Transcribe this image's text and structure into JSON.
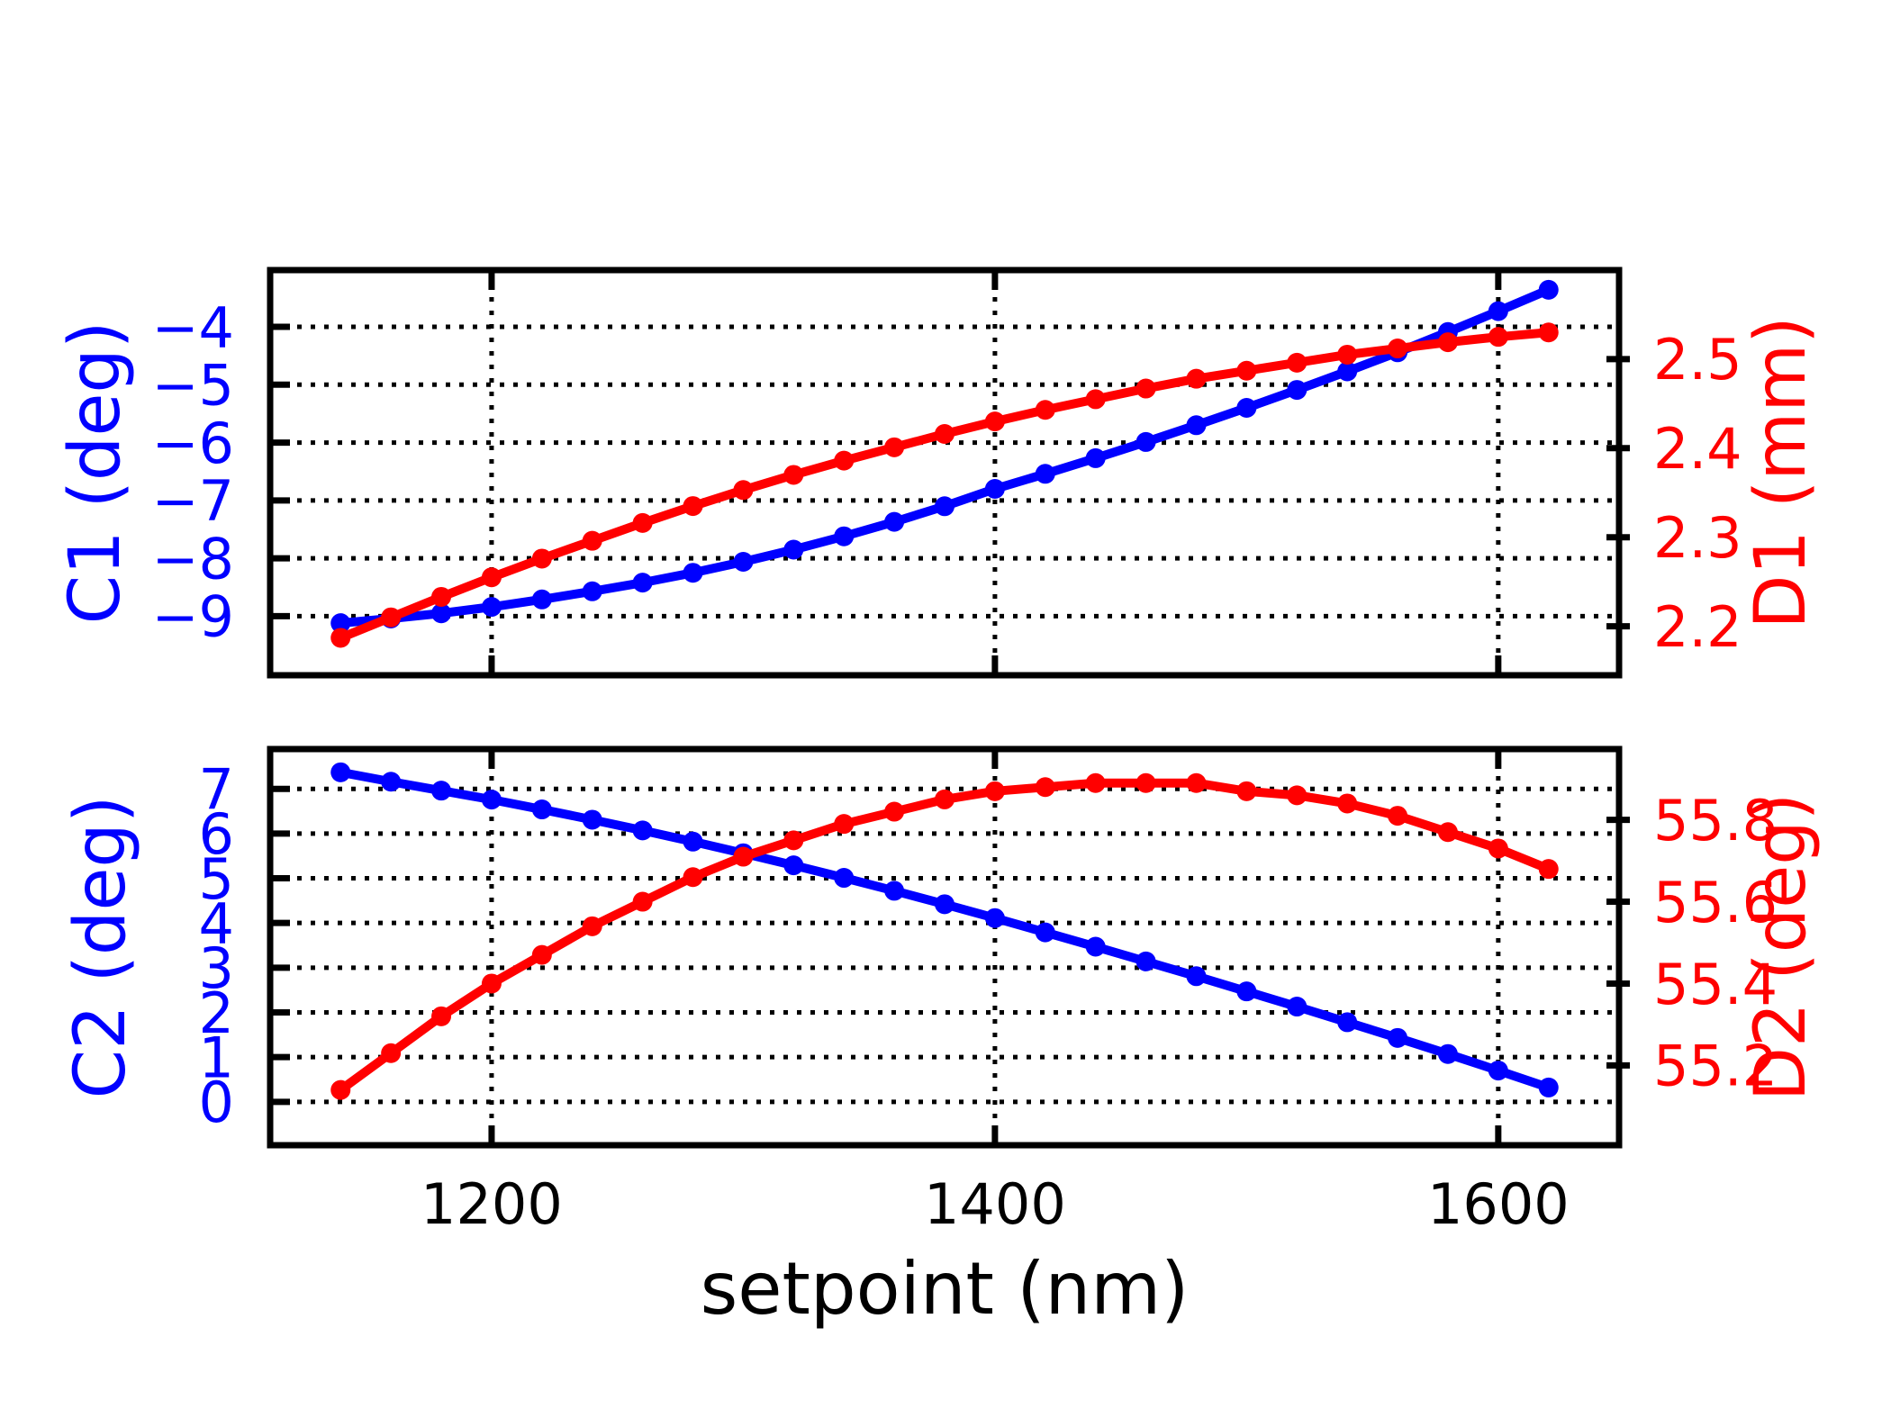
{
  "figure": {
    "xlabel": "setpoint (nm)",
    "background": "#ffffff",
    "grid_color": "#000000",
    "left_series_color": "#0000ff",
    "right_series_color": "#ff0000"
  },
  "chart_data": [
    {
      "type": "line",
      "title": "",
      "panel": "top",
      "x": [
        1140,
        1160,
        1180,
        1200,
        1220,
        1240,
        1260,
        1280,
        1300,
        1320,
        1340,
        1360,
        1380,
        1400,
        1420,
        1440,
        1460,
        1480,
        1500,
        1520,
        1540,
        1560,
        1580,
        1600,
        1620
      ],
      "xlim": [
        1112,
        1648
      ],
      "x_ticks": [
        1200,
        1400,
        1600
      ],
      "x_tick_labels": [
        "1200",
        "1400",
        "1600"
      ],
      "show_x_tick_labels": false,
      "grid": true,
      "series": [
        {
          "name": "C1",
          "axis": "left",
          "color": "#0000ff",
          "values": [
            -9.12,
            -9.04,
            -8.95,
            -8.84,
            -8.71,
            -8.57,
            -8.42,
            -8.25,
            -8.06,
            -7.85,
            -7.62,
            -7.37,
            -7.1,
            -6.8,
            -6.54,
            -6.27,
            -5.99,
            -5.7,
            -5.4,
            -5.09,
            -4.77,
            -4.44,
            -4.09,
            -3.73,
            -3.36
          ]
        },
        {
          "name": "D1",
          "axis": "right",
          "color": "#ff0000",
          "values": [
            2.187,
            2.21,
            2.233,
            2.255,
            2.276,
            2.296,
            2.316,
            2.335,
            2.353,
            2.37,
            2.386,
            2.401,
            2.416,
            2.43,
            2.443,
            2.455,
            2.467,
            2.478,
            2.487,
            2.496,
            2.505,
            2.512,
            2.519,
            2.525,
            2.53
          ]
        }
      ],
      "left_axis": {
        "label": "C1 (deg)",
        "color": "#0000ff",
        "lim": [
          -10.02,
          -3.02
        ],
        "tick_values": [
          -4,
          -5,
          -6,
          -7,
          -8,
          -9
        ],
        "tick_labels": [
          "−4",
          "−5",
          "−6",
          "−7",
          "−8",
          "−9"
        ]
      },
      "right_axis": {
        "label": "D1 (mm)",
        "color": "#ff0000",
        "lim": [
          2.145,
          2.6
        ],
        "tick_values": [
          2.5,
          2.4,
          2.3,
          2.2
        ],
        "tick_labels": [
          "2.5",
          "2.4",
          "2.3",
          "2.2"
        ]
      }
    },
    {
      "type": "line",
      "title": "",
      "panel": "bottom",
      "x": [
        1140,
        1160,
        1180,
        1200,
        1220,
        1240,
        1260,
        1280,
        1300,
        1320,
        1340,
        1360,
        1380,
        1400,
        1420,
        1440,
        1460,
        1480,
        1500,
        1520,
        1540,
        1560,
        1580,
        1600,
        1620
      ],
      "xlim": [
        1112,
        1648
      ],
      "x_ticks": [
        1200,
        1400,
        1600
      ],
      "x_tick_labels": [
        "1200",
        "1400",
        "1600"
      ],
      "show_x_tick_labels": true,
      "xlabel": "setpoint (nm)",
      "grid": true,
      "series": [
        {
          "name": "C2",
          "axis": "left",
          "color": "#0000ff",
          "values": [
            7.37,
            7.16,
            6.96,
            6.76,
            6.54,
            6.31,
            6.07,
            5.82,
            5.56,
            5.29,
            5.01,
            4.72,
            4.42,
            4.11,
            3.79,
            3.47,
            3.14,
            2.81,
            2.47,
            2.13,
            1.78,
            1.43,
            1.07,
            0.7,
            0.32
          ]
        },
        {
          "name": "D2",
          "axis": "right",
          "color": "#ff0000",
          "values": [
            55.14,
            55.23,
            55.32,
            55.4,
            55.47,
            55.54,
            55.6,
            55.66,
            55.71,
            55.75,
            55.79,
            55.82,
            55.85,
            55.87,
            55.88,
            55.89,
            55.89,
            55.89,
            55.87,
            55.86,
            55.84,
            55.81,
            55.77,
            55.73,
            55.68
          ]
        }
      ],
      "left_axis": {
        "label": "C2 (deg)",
        "color": "#0000ff",
        "lim": [
          -0.97,
          7.89
        ],
        "tick_values": [
          7,
          6,
          5,
          4,
          3,
          2,
          1,
          0
        ],
        "tick_labels": [
          "7",
          "6",
          "5",
          "4",
          "3",
          "2",
          "1",
          "0"
        ]
      },
      "right_axis": {
        "label": "D2 (deg)",
        "color": "#ff0000",
        "lim": [
          55.005,
          55.973
        ],
        "tick_values": [
          55.8,
          55.6,
          55.4,
          55.2
        ],
        "tick_labels": [
          "55.8",
          "55.6",
          "55.4",
          "55.2"
        ]
      }
    }
  ]
}
